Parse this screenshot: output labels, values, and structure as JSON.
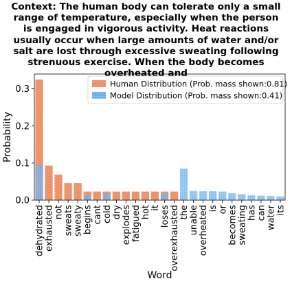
{
  "chart_data": {
    "type": "bar",
    "title_lines": [
      "Context: The human body can tolerate only a small",
      "range of temperature, especially when the person",
      "is engaged in vigorous activity. Heat reactions",
      "usually occur when large amounts of water and/or",
      "salt are lost through excessive sweating following",
      "strenuous exercise. When the body becomes",
      "overheated and"
    ],
    "xlabel": "Word",
    "ylabel": "Probability",
    "ylim": [
      0,
      0.34
    ],
    "yticks": [
      "0.0",
      "0.1",
      "0.2",
      "0.3"
    ],
    "ytick_values": [
      0,
      0.1,
      0.2,
      0.3
    ],
    "legend_position": "top-right",
    "categories": [
      "dehydrated",
      "exhausted",
      "not",
      "sweats",
      "sweaty",
      "begins",
      "cant",
      "cold",
      "dry",
      "explodes",
      "fatigued",
      "hot",
      "it",
      "loses",
      "overexhausted",
      "the",
      "unable",
      "overheated",
      "is",
      "or",
      "becomes",
      "sweating",
      "has",
      "can",
      "water",
      "its"
    ],
    "series": [
      {
        "name": "Human Distribution (Prob. mass shown:0.81)",
        "color": "#f08050",
        "hatch": "diagonal",
        "values": [
          0.325,
          0.093,
          0.069,
          0.046,
          0.046,
          0.023,
          0.023,
          0.023,
          0.023,
          0.023,
          0.023,
          0.023,
          0.023,
          0.023,
          0.023,
          0,
          0,
          0,
          0,
          0,
          0,
          0,
          0,
          0,
          0,
          0
        ]
      },
      {
        "name": "Model Distribution (Prob. mass shown:0.41)",
        "color": "#5aaaf0",
        "hatch": "dots",
        "values": [
          0.095,
          0,
          0,
          0,
          0,
          0.011,
          0,
          0.017,
          0,
          0,
          0,
          0,
          0,
          0.019,
          0,
          0.085,
          0.025,
          0.024,
          0.024,
          0.023,
          0.019,
          0.016,
          0.013,
          0.012,
          0.011,
          0.01
        ]
      }
    ]
  }
}
